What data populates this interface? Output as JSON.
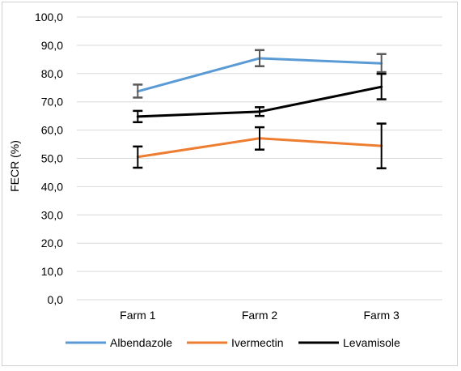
{
  "chart_data": {
    "type": "line",
    "categories": [
      "Farm 1",
      "Farm 2",
      "Farm 3"
    ],
    "series": [
      {
        "name": "Albendazole",
        "values": [
          73.7,
          85.4,
          83.6
        ],
        "err_low": [
          71.5,
          82.6,
          80.5
        ],
        "err_high": [
          76.1,
          88.3,
          86.9
        ],
        "color": "#5b9bd5",
        "errColor": "#595959"
      },
      {
        "name": "Ivermectin",
        "values": [
          50.5,
          57.1,
          54.4
        ],
        "err_low": [
          46.7,
          53.1,
          46.5
        ],
        "err_high": [
          54.2,
          61.0,
          62.3
        ],
        "color": "#ed7d31",
        "errColor": "#000000"
      },
      {
        "name": "Levamisole",
        "values": [
          64.8,
          66.5,
          75.3
        ],
        "err_low": [
          62.8,
          65.0,
          70.9
        ],
        "err_high": [
          66.8,
          68.1,
          79.9
        ],
        "color": "#000000",
        "errColor": "#000000"
      }
    ],
    "title": "",
    "xlabel": "",
    "ylabel": "FECR (%)",
    "ylim": [
      0,
      100
    ],
    "yticks": [
      "0,0",
      "10,0",
      "20,0",
      "30,0",
      "40,0",
      "50,0",
      "60,0",
      "70,0",
      "80,0",
      "90,0",
      "100,0"
    ],
    "grid": true,
    "legend": "bottom"
  }
}
